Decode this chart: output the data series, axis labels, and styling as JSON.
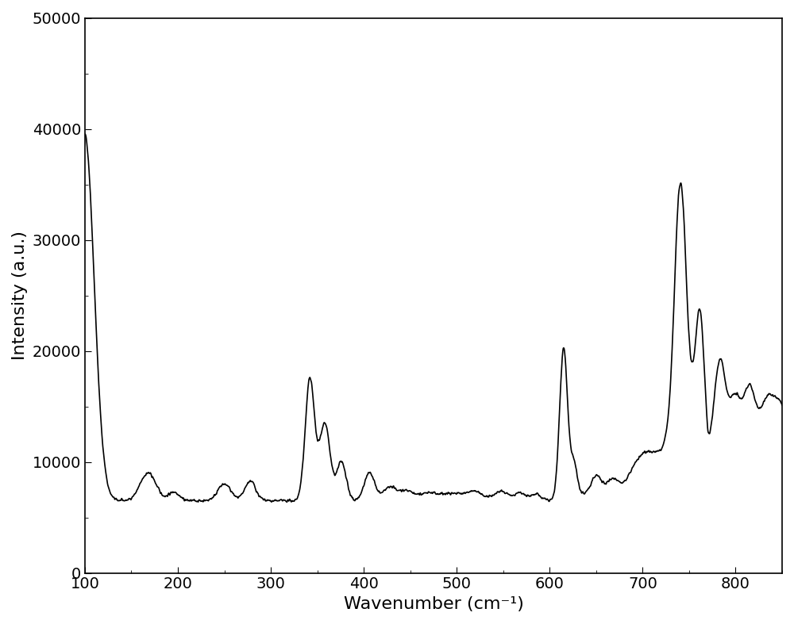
{
  "xlabel": "Wavenumber (cm⁻¹)",
  "ylabel": "Intensity (a.u.)",
  "xlim": [
    100,
    850
  ],
  "ylim": [
    0,
    50000
  ],
  "yticks": [
    0,
    10000,
    20000,
    30000,
    40000,
    50000
  ],
  "xticks": [
    100,
    200,
    300,
    400,
    500,
    600,
    700,
    800
  ],
  "line_color": "#000000",
  "line_width": 1.2,
  "background_color": "#ffffff",
  "xlabel_fontsize": 16,
  "ylabel_fontsize": 16,
  "tick_fontsize": 14
}
